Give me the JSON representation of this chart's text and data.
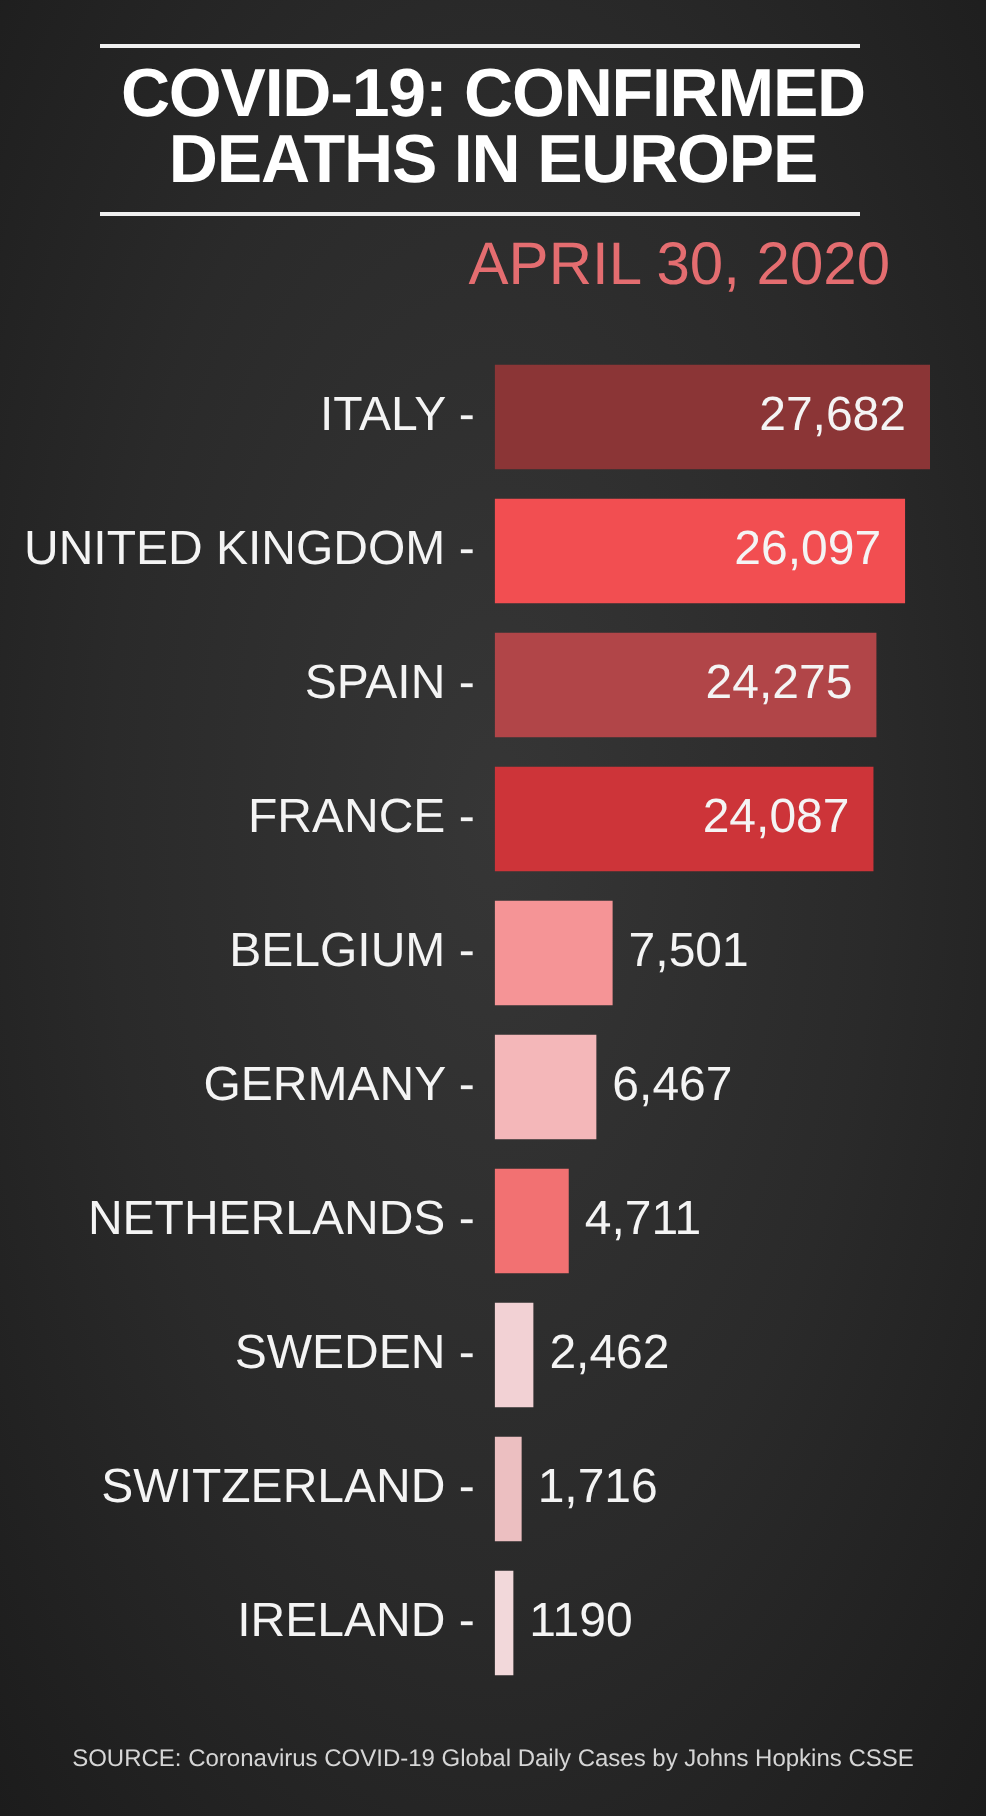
{
  "chart_data": {
    "type": "bar",
    "orientation": "horizontal",
    "title": "COVID-19: CONFIRMED DEATHS IN EUROPE",
    "subtitle": "APRIL 30, 2020",
    "categories": [
      "ITALY -",
      "UNITED KINGDOM -",
      "SPAIN -",
      "FRANCE -",
      "BELGIUM -",
      "GERMANY -",
      "NETHERLANDS -",
      "SWEDEN -",
      "SWITZERLAND -",
      "IRELAND -"
    ],
    "values": [
      27682,
      26097,
      24275,
      24087,
      7501,
      6467,
      4711,
      2462,
      1716,
      1190
    ],
    "value_labels": [
      "27,682",
      "26,097",
      "24,275",
      "24,087",
      "7,501",
      "6,467",
      "4,711",
      "2,462",
      "1,716",
      "1190"
    ],
    "colors": [
      "#8b3536",
      "#f24e51",
      "#b14548",
      "#cd3439",
      "#f59496",
      "#f4b7b9",
      "#f27172",
      "#f2d1d4",
      "#ecbfc1",
      "#f2d8da"
    ],
    "tick_labels": "y",
    "annotations": [
      "SOURCE: Coronavirus COVID-19 Global Daily Cases by Johns Hopkins CSSE"
    ]
  }
}
